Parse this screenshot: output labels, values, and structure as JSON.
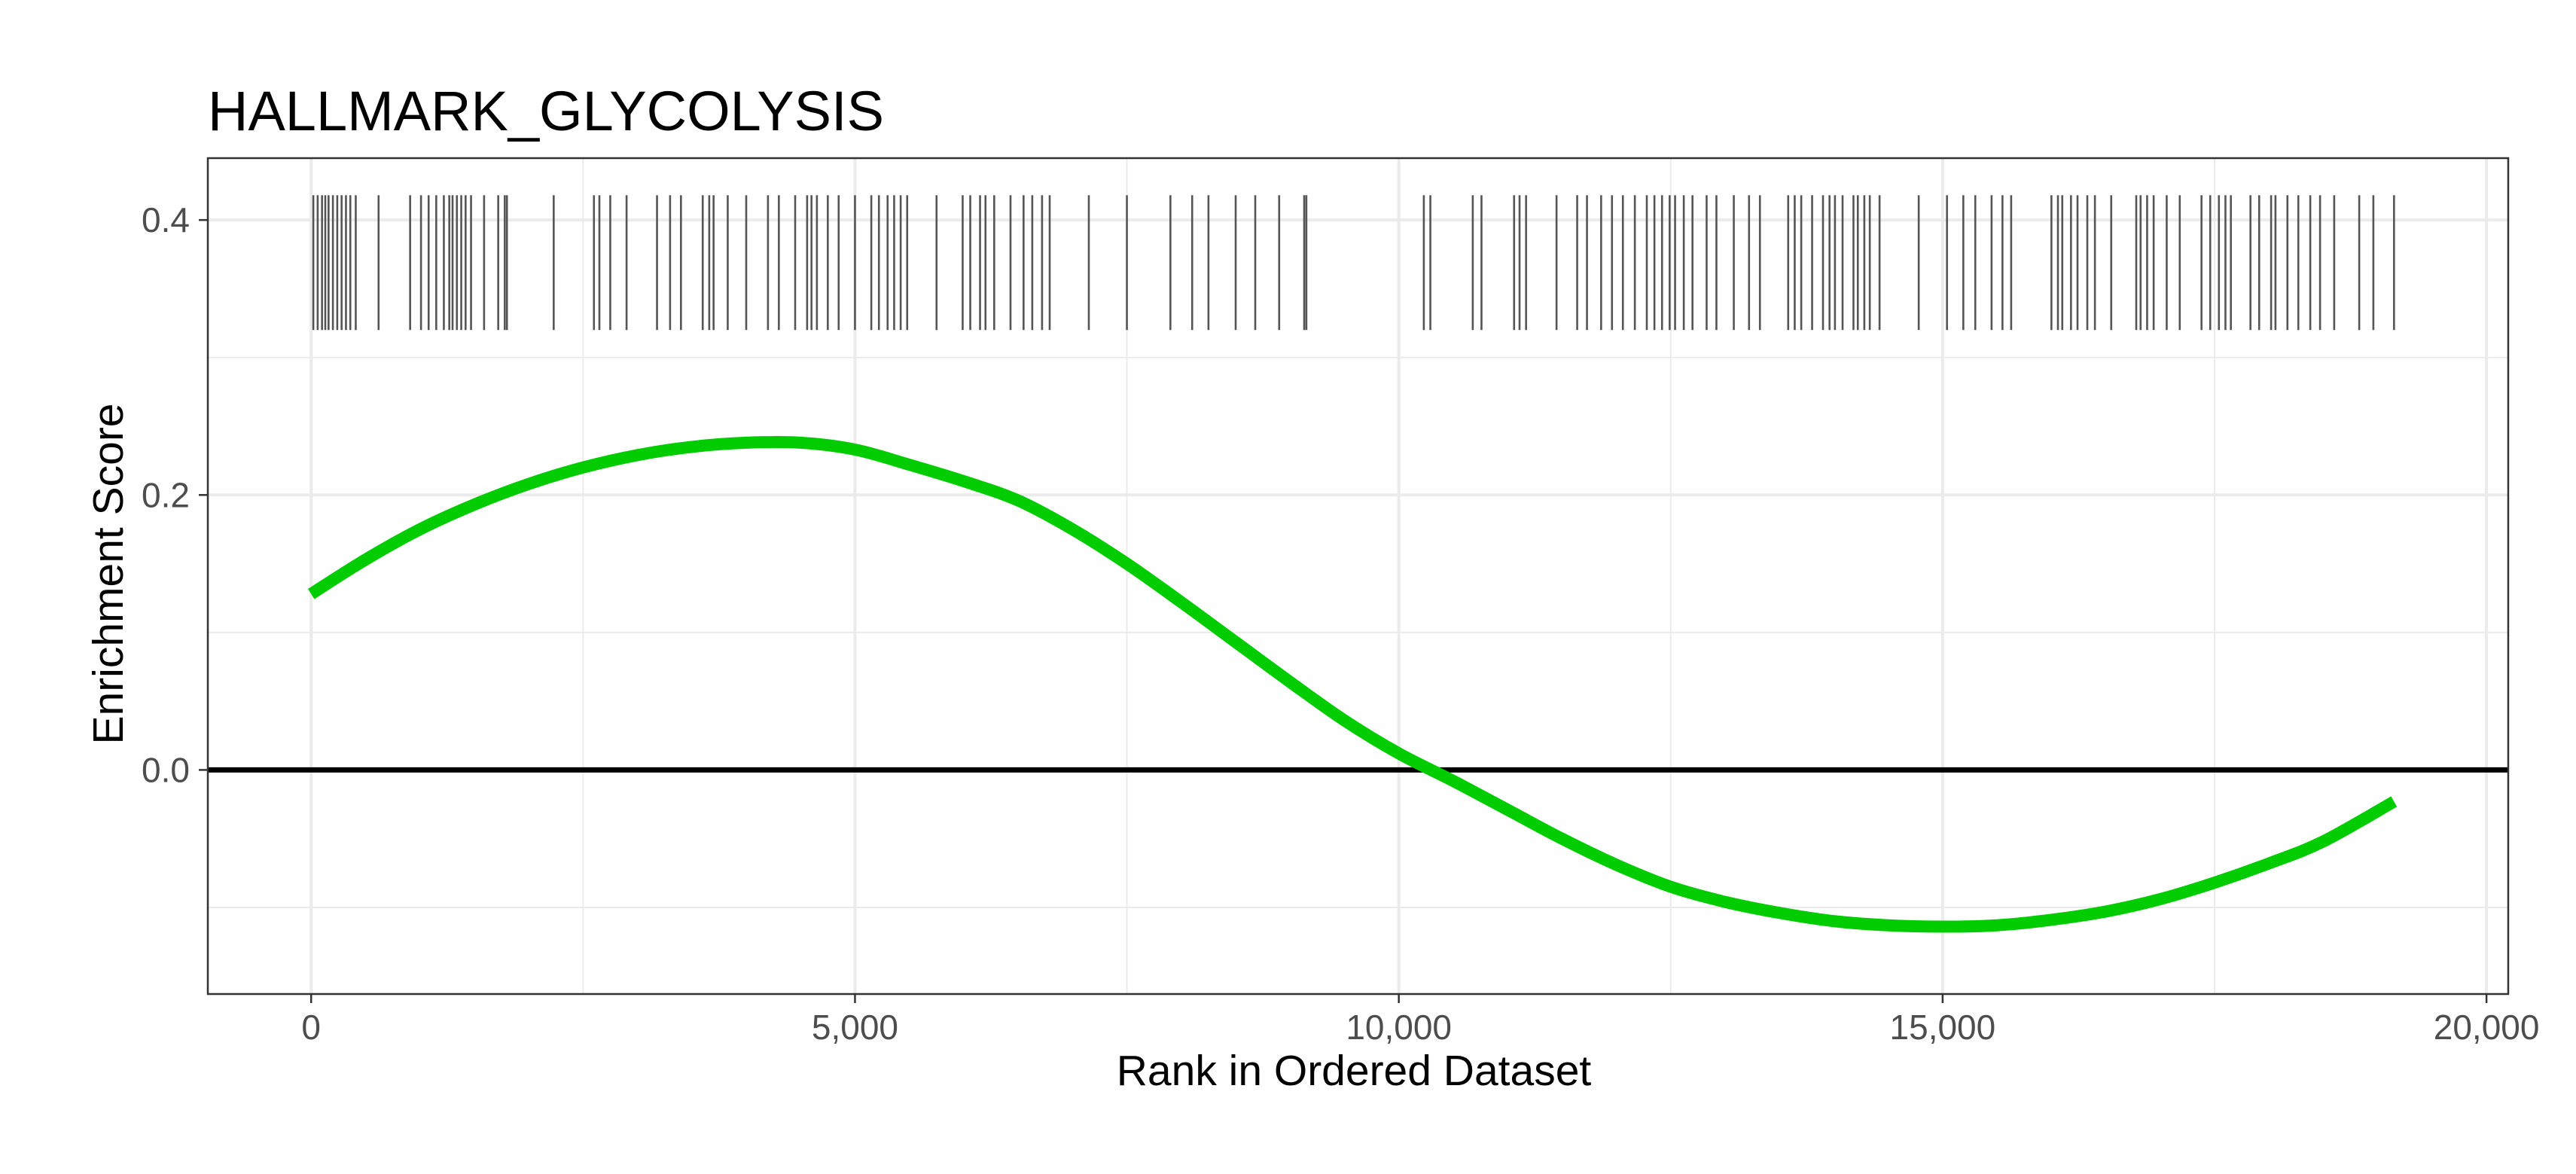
{
  "chart_data": {
    "type": "line",
    "title": "HALLMARK_GLYCOLYSIS",
    "xlabel": "Rank in Ordered Dataset",
    "ylabel": "Enrichment Score",
    "xlim": [
      -950,
      20200
    ],
    "ylim": [
      -0.163,
      0.445
    ],
    "x_ticks": [
      0,
      5000,
      10000,
      15000,
      20000
    ],
    "x_tick_labels": [
      "0",
      "5,000",
      "10,000",
      "15,000",
      "20,000"
    ],
    "y_ticks": [
      0.0,
      0.2,
      0.4
    ],
    "y_tick_labels": [
      "0.0",
      "0.2",
      "0.4"
    ],
    "grid": true,
    "legend": "none",
    "reference_line": {
      "y": 0,
      "color": "#000000"
    },
    "series": [
      {
        "color": "#00cc00",
        "x": [
          0,
          500,
          1000,
          1500,
          2000,
          2500,
          3000,
          3500,
          4000,
          4500,
          5000,
          5500,
          6000,
          6500,
          7000,
          7500,
          8000,
          8500,
          9000,
          9500,
          10000,
          10500,
          11000,
          11500,
          12000,
          12500,
          13000,
          13500,
          14000,
          14500,
          15000,
          15500,
          16000,
          16500,
          17000,
          17500,
          18000,
          18500,
          19150
        ],
        "y": [
          0.128,
          0.153,
          0.175,
          0.193,
          0.208,
          0.22,
          0.229,
          0.235,
          0.238,
          0.238,
          0.233,
          0.222,
          0.21,
          0.196,
          0.175,
          0.15,
          0.122,
          0.093,
          0.064,
          0.036,
          0.012,
          -0.008,
          -0.029,
          -0.05,
          -0.069,
          -0.085,
          -0.096,
          -0.104,
          -0.11,
          -0.113,
          -0.114,
          -0.113,
          -0.109,
          -0.103,
          -0.094,
          -0.082,
          -0.068,
          -0.052,
          -0.023
        ]
      }
    ],
    "rug": {
      "color": "#555555",
      "y_range": [
        0.32,
        0.418
      ],
      "x": [
        20,
        60,
        100,
        130,
        160,
        200,
        240,
        280,
        320,
        360,
        410,
        620,
        910,
        1010,
        1080,
        1150,
        1220,
        1270,
        1300,
        1340,
        1380,
        1420,
        1470,
        1590,
        1720,
        1780,
        1800,
        2230,
        2600,
        2650,
        2750,
        2900,
        3180,
        3300,
        3400,
        3600,
        3660,
        3700,
        3830,
        4000,
        4200,
        4300,
        4450,
        4560,
        4600,
        4650,
        4750,
        4850,
        5000,
        5150,
        5220,
        5300,
        5360,
        5420,
        5480,
        5750,
        5990,
        6060,
        6150,
        6200,
        6280,
        6430,
        6550,
        6630,
        6720,
        6790,
        7150,
        7500,
        7900,
        8100,
        8250,
        8500,
        8680,
        8900,
        9130,
        9150,
        10230,
        10290,
        10680,
        10760,
        11060,
        11110,
        11170,
        11450,
        11640,
        11730,
        11860,
        11960,
        12060,
        12170,
        12280,
        12350,
        12420,
        12490,
        12540,
        12620,
        12700,
        12830,
        12920,
        13080,
        13220,
        13320,
        13580,
        13640,
        13700,
        13800,
        13900,
        13960,
        14010,
        14080,
        14180,
        14220,
        14280,
        14330,
        14420,
        14780,
        15040,
        15190,
        15300,
        15450,
        15550,
        15630,
        16000,
        16060,
        16100,
        16180,
        16240,
        16330,
        16400,
        16550,
        16780,
        16820,
        16880,
        16940,
        17060,
        17180,
        17380,
        17460,
        17540,
        17600,
        17650,
        17830,
        17910,
        18020,
        18060,
        18170,
        18270,
        18380,
        18470,
        18600,
        18830,
        18960,
        19150
      ]
    }
  }
}
